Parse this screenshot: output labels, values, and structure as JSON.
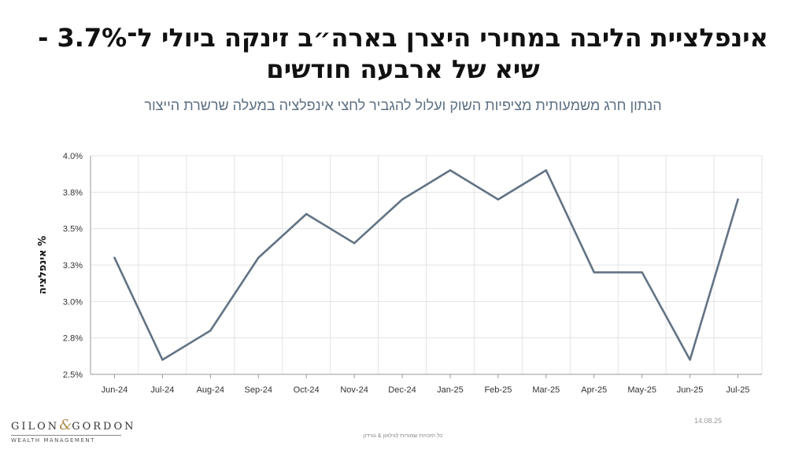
{
  "title_line1": "אינפלציית הליבה במחירי היצרן בארה״ב זינקה ביולי ל־3.7% -",
  "title_line2": "שיא של ארבעה חודשים",
  "subtitle": "הנתון חרג משמעותית מציפיות השוק ועלול להגביר לחצי אינפלציה במעלה שרשרת הייצור",
  "chart_data": {
    "type": "line",
    "categories": [
      "Jun-24",
      "Jul-24",
      "Aug-24",
      "Sep-24",
      "Oct-24",
      "Nov-24",
      "Dec-24",
      "Jan-25",
      "Feb-25",
      "Mar-25",
      "Apr-25",
      "May-25",
      "Jun-25",
      "Jul-25"
    ],
    "series": [
      {
        "values": [
          3.3,
          2.6,
          2.8,
          3.3,
          3.6,
          3.4,
          3.7,
          3.9,
          3.7,
          3.9,
          3.2,
          3.2,
          2.6,
          3.7
        ]
      }
    ],
    "ylabel": "% אינפלציה",
    "ylim": [
      2.5,
      4.0
    ],
    "yticks": [
      2.5,
      2.75,
      3.0,
      3.25,
      3.5,
      3.75,
      4.0
    ],
    "ytick_labels": [
      "2.5%",
      "2.8%",
      "3.0%",
      "3.3%",
      "3.5%",
      "3.8%",
      "4.0%"
    ],
    "grid": true,
    "line_color": "#627384"
  },
  "logo": {
    "left": "GILON",
    "amp": "&",
    "right": "GORDON",
    "sub": "WEALTH MANAGEMENT"
  },
  "date": "14.08.25",
  "footer": "כל הזכויות שמורות לגילאון & גורדון"
}
